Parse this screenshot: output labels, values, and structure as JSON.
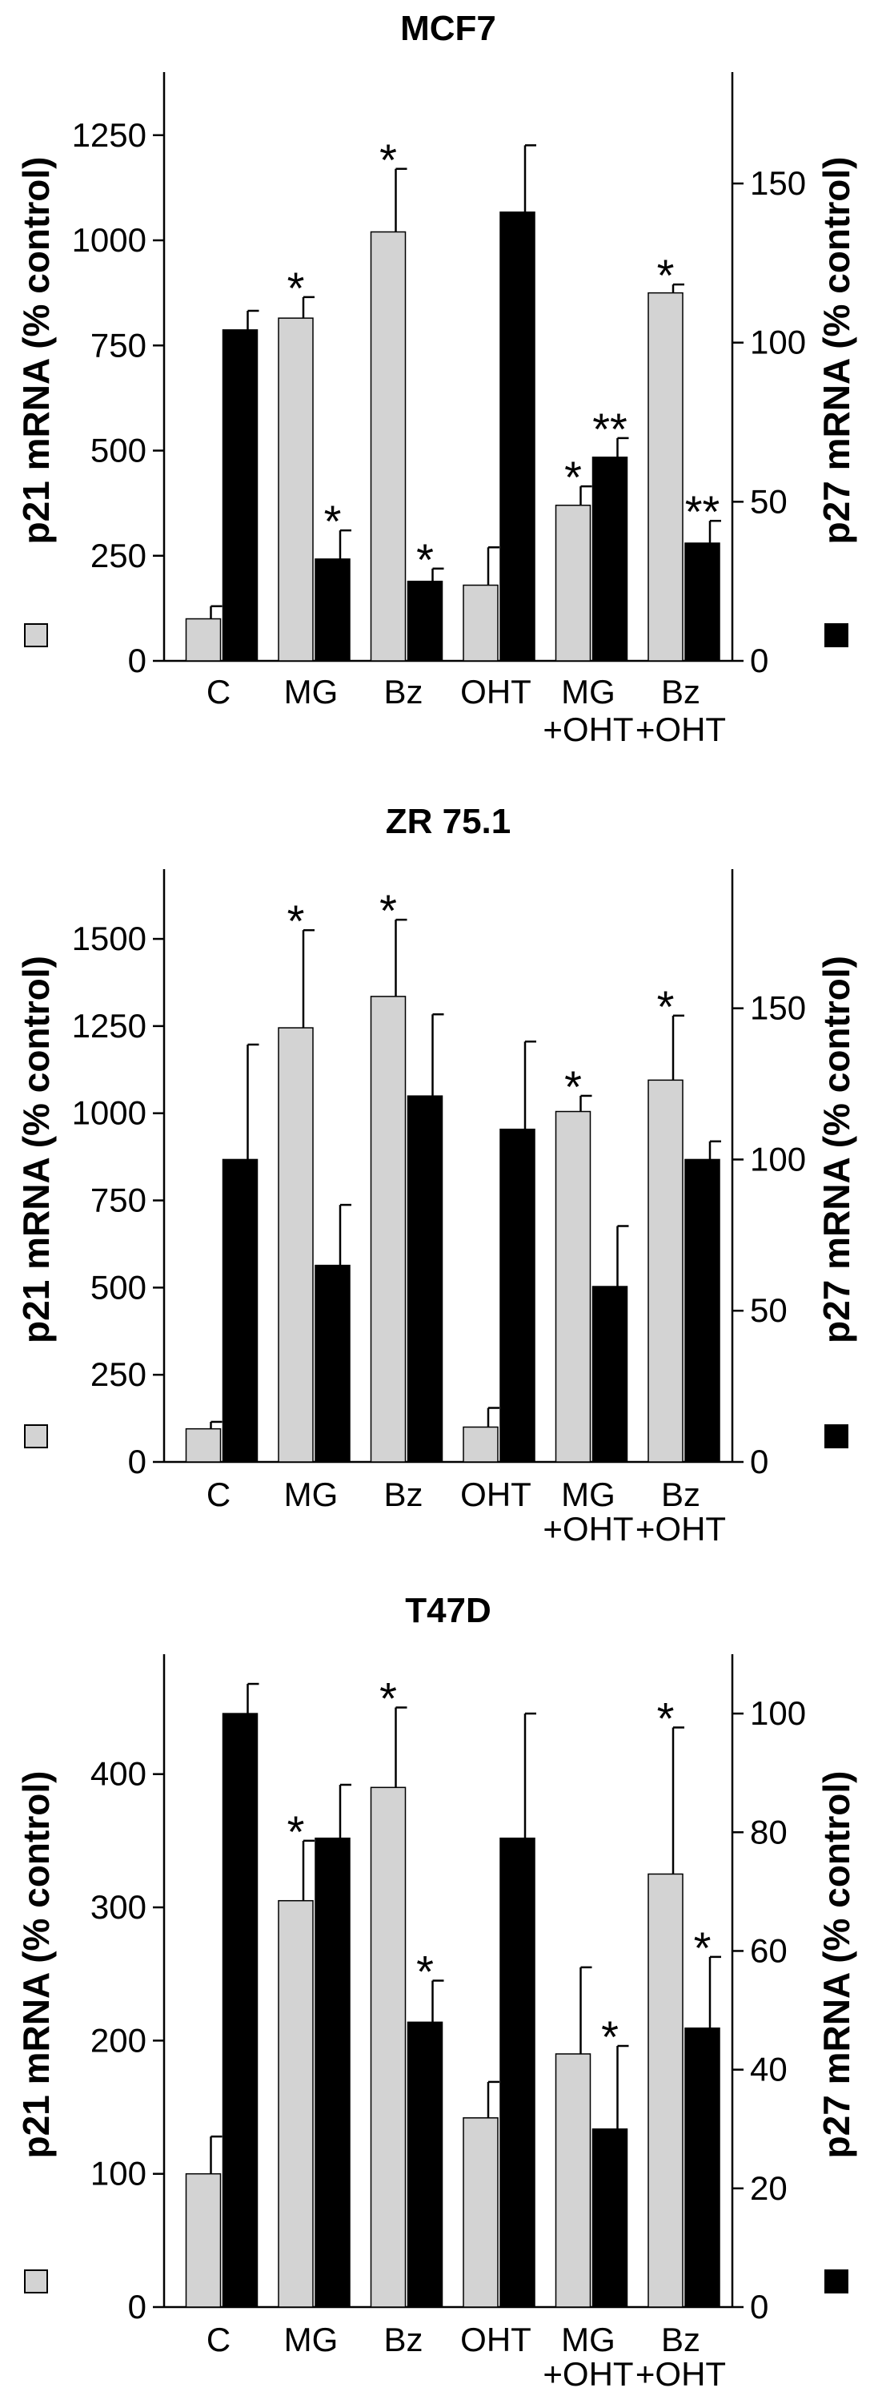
{
  "colors": {
    "p21": "#d3d3d3",
    "p27": "#000000",
    "axis": "#000000"
  },
  "chart_data": [
    {
      "type": "bar",
      "title": "MCF7",
      "categories": [
        "C",
        "MG",
        "Bz",
        "OHT",
        "MG\n+OHT",
        "Bz\n+OHT"
      ],
      "ylabel": "p21 mRNA (% control)",
      "y2label": "p27 mRNA (% control)",
      "ylim": [
        0,
        1400
      ],
      "y2lim": [
        0,
        185
      ],
      "yticks": [
        0,
        250,
        500,
        750,
        1000,
        1250
      ],
      "y2ticks": [
        0,
        50,
        100,
        150
      ],
      "grid": false,
      "series": [
        {
          "key": "p21",
          "axis": "left",
          "values": [
            100,
            815,
            1020,
            180,
            370,
            875
          ],
          "errors": [
            30,
            50,
            150,
            90,
            45,
            20
          ],
          "stars": [
            "",
            "*",
            "*",
            "",
            "*",
            "*"
          ]
        },
        {
          "key": "p27",
          "axis": "right",
          "values": [
            104,
            32,
            25,
            141,
            64,
            37
          ],
          "errors": [
            6,
            9,
            4,
            21,
            6,
            7
          ],
          "stars": [
            "",
            "*",
            "*",
            "",
            "**",
            "**"
          ]
        }
      ]
    },
    {
      "type": "bar",
      "title": "ZR 75.1",
      "categories": [
        "C",
        "MG",
        "Bz",
        "OHT",
        "MG\n+OHT",
        "Bz\n+OHT"
      ],
      "ylabel": "p21 mRNA (% control)",
      "y2label": "p27 mRNA (% control)",
      "ylim": [
        0,
        1700
      ],
      "y2lim": [
        0,
        196
      ],
      "yticks": [
        0,
        250,
        500,
        750,
        1000,
        1250,
        1500
      ],
      "y2ticks": [
        0,
        50,
        100,
        150
      ],
      "grid": false,
      "series": [
        {
          "key": "p21",
          "axis": "left",
          "values": [
            95,
            1245,
            1335,
            100,
            1005,
            1095
          ],
          "errors": [
            20,
            280,
            220,
            55,
            45,
            185
          ],
          "stars": [
            "",
            "*",
            "*",
            "",
            "*",
            "*"
          ]
        },
        {
          "key": "p27",
          "axis": "right",
          "values": [
            100,
            65,
            121,
            110,
            58,
            100
          ],
          "errors": [
            38,
            20,
            27,
            29,
            20,
            6
          ],
          "stars": [
            "",
            "",
            "",
            "",
            "",
            ""
          ]
        }
      ]
    },
    {
      "type": "bar",
      "title": "T47D",
      "categories": [
        "C",
        "MG",
        "Bz",
        "OHT",
        "MG\n+OHT",
        "Bz\n+OHT"
      ],
      "ylabel": "p21 mRNA (% control)",
      "y2label": "p27 mRNA (% control)",
      "ylim": [
        0,
        490
      ],
      "y2lim": [
        0,
        110
      ],
      "yticks": [
        0,
        100,
        200,
        300,
        400
      ],
      "y2ticks": [
        0,
        20,
        40,
        60,
        80,
        100
      ],
      "grid": false,
      "series": [
        {
          "key": "p21",
          "axis": "left",
          "values": [
            100,
            305,
            390,
            142,
            190,
            325
          ],
          "errors": [
            28,
            45,
            60,
            27,
            65,
            110
          ],
          "stars": [
            "",
            "*",
            "*",
            "",
            "",
            "*"
          ]
        },
        {
          "key": "p27",
          "axis": "right",
          "values": [
            100,
            79,
            48,
            79,
            30,
            47
          ],
          "errors": [
            5,
            9,
            7,
            21,
            14,
            12
          ],
          "stars": [
            "",
            "",
            "*",
            "",
            "*",
            "*"
          ]
        }
      ]
    }
  ]
}
